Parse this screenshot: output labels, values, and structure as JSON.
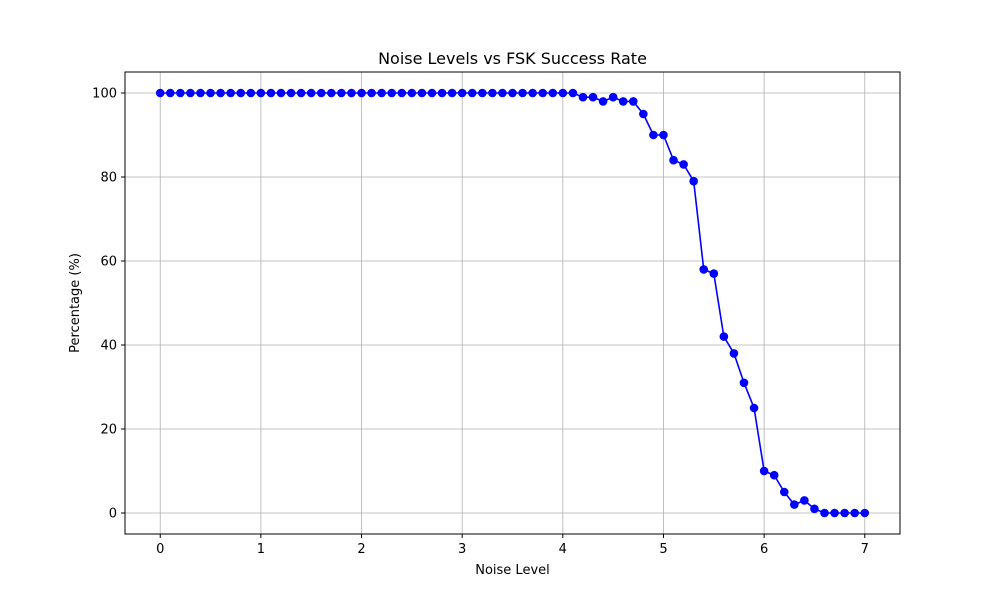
{
  "chart_data": {
    "type": "line",
    "title": "Noise Levels vs FSK Success Rate",
    "xlabel": "Noise Level",
    "ylabel": "Percentage (%)",
    "xlim": [
      -0.35,
      7.35
    ],
    "ylim": [
      -5,
      105
    ],
    "xticks": [
      0,
      1,
      2,
      3,
      4,
      5,
      6,
      7
    ],
    "yticks": [
      0,
      20,
      40,
      60,
      80,
      100
    ],
    "grid": true,
    "colors": {
      "series": "#0000ff"
    },
    "series": [
      {
        "marker": "circle",
        "x": [
          0.0,
          0.1,
          0.2,
          0.3,
          0.4,
          0.5,
          0.6,
          0.7,
          0.8,
          0.9,
          1.0,
          1.1,
          1.2,
          1.3,
          1.4,
          1.5,
          1.6,
          1.7,
          1.8,
          1.9,
          2.0,
          2.1,
          2.2,
          2.3,
          2.4,
          2.5,
          2.6,
          2.7,
          2.8,
          2.9,
          3.0,
          3.1,
          3.2,
          3.3,
          3.4,
          3.5,
          3.6,
          3.7,
          3.8,
          3.9,
          4.0,
          4.1,
          4.2,
          4.3,
          4.4,
          4.5,
          4.6,
          4.7,
          4.8,
          4.9,
          5.0,
          5.1,
          5.2,
          5.3,
          5.4,
          5.5,
          5.6,
          5.7,
          5.8,
          5.9,
          6.0,
          6.1,
          6.2,
          6.3,
          6.4,
          6.5,
          6.6,
          6.7,
          6.8,
          6.9,
          7.0
        ],
        "y": [
          100,
          100,
          100,
          100,
          100,
          100,
          100,
          100,
          100,
          100,
          100,
          100,
          100,
          100,
          100,
          100,
          100,
          100,
          100,
          100,
          100,
          100,
          100,
          100,
          100,
          100,
          100,
          100,
          100,
          100,
          100,
          100,
          100,
          100,
          100,
          100,
          100,
          100,
          100,
          100,
          100,
          100,
          99,
          99,
          98,
          99,
          98,
          98,
          95,
          90,
          90,
          84,
          83,
          79,
          58,
          57,
          42,
          38,
          31,
          25,
          10,
          9,
          5,
          2,
          3,
          1,
          0,
          0,
          0,
          0,
          0
        ]
      }
    ]
  }
}
